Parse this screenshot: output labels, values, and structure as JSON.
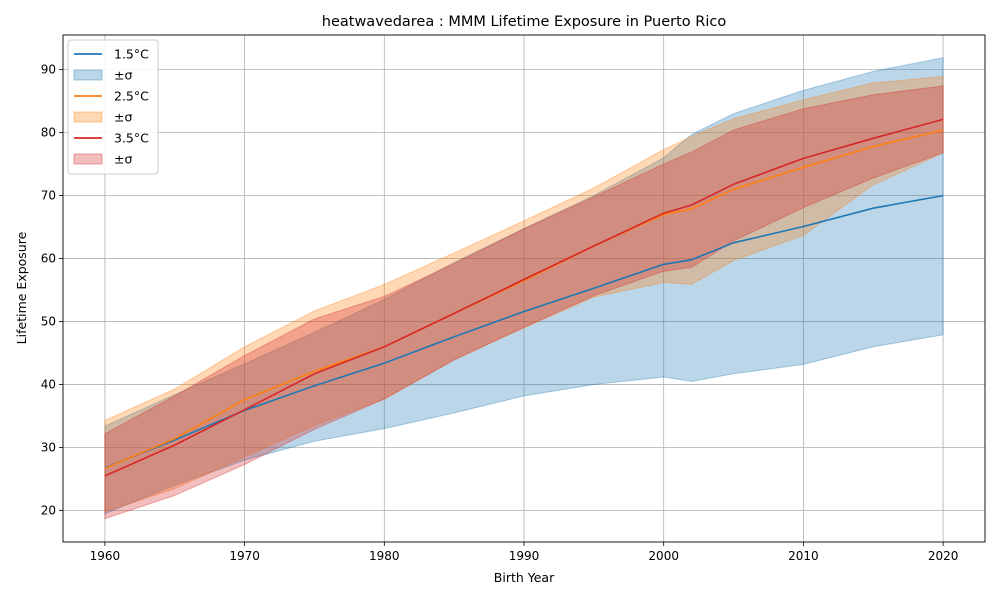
{
  "chart_data": {
    "type": "line",
    "title": "heatwavedarea : MMM Lifetime Exposure in Puerto Rico",
    "xlabel": "Birth Year",
    "ylabel": "Lifetime Exposure",
    "xlim": [
      1957,
      2023
    ],
    "ylim": [
      15,
      95.5
    ],
    "xticks": [
      1960,
      1970,
      1980,
      1990,
      2000,
      2010,
      2020
    ],
    "yticks": [
      20,
      30,
      40,
      50,
      60,
      70,
      80,
      90
    ],
    "grid": true,
    "legend_position": "top-left",
    "x": [
      1960,
      1965,
      1970,
      1975,
      1980,
      1985,
      1990,
      1995,
      2000,
      2002,
      2005,
      2010,
      2015,
      2020
    ],
    "series": [
      {
        "name": "1.5°C",
        "band_label": "±σ",
        "color": "#1f77b4",
        "values": [
          26.8,
          31.2,
          35.9,
          39.8,
          43.4,
          47.6,
          51.6,
          55.3,
          59.1,
          59.8,
          62.5,
          65.1,
          68.0,
          70.0
        ],
        "lower": [
          19.5,
          24.0,
          28.0,
          31.0,
          33.0,
          35.5,
          38.2,
          40.0,
          41.2,
          40.5,
          41.7,
          43.2,
          46.0,
          47.9
        ],
        "upper": [
          33.4,
          38.4,
          43.3,
          48.3,
          53.5,
          59.4,
          64.8,
          70.0,
          76.0,
          79.7,
          83.0,
          86.7,
          89.7,
          91.9
        ]
      },
      {
        "name": "2.5°C",
        "band_label": "±σ",
        "color": "#ff7f0e",
        "values": [
          26.7,
          31.4,
          37.6,
          42.1,
          46.0,
          51.3,
          56.5,
          62.0,
          67.0,
          67.9,
          71.0,
          74.5,
          77.8,
          80.4
        ],
        "lower": [
          19.8,
          23.5,
          28.5,
          33.5,
          37.7,
          44.0,
          49.0,
          53.9,
          56.2,
          55.9,
          59.7,
          63.7,
          71.7,
          76.8
        ],
        "upper": [
          34.3,
          39.3,
          46.0,
          51.7,
          55.9,
          60.9,
          66.0,
          71.2,
          77.3,
          79.4,
          82.2,
          85.2,
          87.9,
          88.9
        ]
      },
      {
        "name": "3.5°C",
        "band_label": "±σ",
        "color": "#d62728",
        "values": [
          25.5,
          30.4,
          36.0,
          41.7,
          46.0,
          51.3,
          56.7,
          62.0,
          67.2,
          68.5,
          71.8,
          75.9,
          79.1,
          82.1
        ],
        "lower": [
          18.7,
          22.4,
          27.3,
          32.9,
          37.7,
          43.9,
          49.1,
          54.1,
          58.0,
          58.6,
          62.8,
          68.1,
          72.8,
          76.8
        ],
        "upper": [
          32.2,
          38.2,
          44.6,
          50.4,
          54.0,
          59.2,
          64.7,
          69.8,
          75.0,
          76.9,
          80.4,
          83.8,
          86.0,
          87.4
        ]
      }
    ]
  }
}
